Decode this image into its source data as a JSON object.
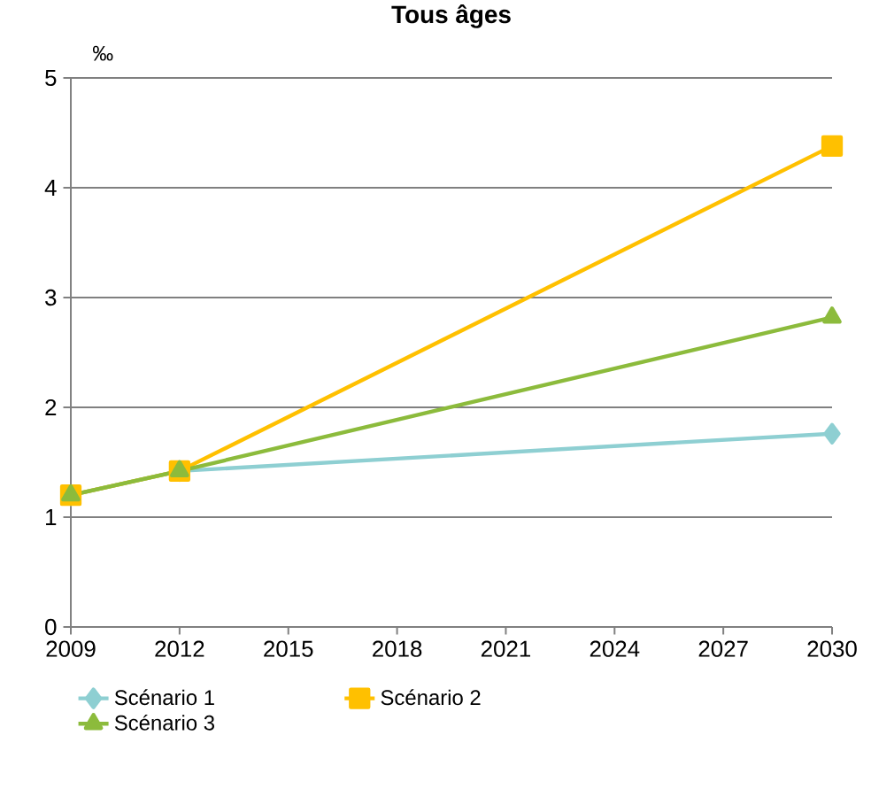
{
  "chart_data": {
    "type": "line",
    "title": "Tous âges",
    "ylabel": "‰",
    "x": [
      2009,
      2012,
      2030
    ],
    "series": [
      {
        "name": "Scénario 1",
        "color": "#8ecfd2",
        "marker": "diamond",
        "values": [
          1.2,
          1.42,
          1.76
        ]
      },
      {
        "name": "Scénario 2",
        "color": "#ffc000",
        "marker": "square",
        "values": [
          1.2,
          1.42,
          4.38
        ]
      },
      {
        "name": "Scénario 3",
        "color": "#8cbb3c",
        "marker": "triangle",
        "values": [
          1.2,
          1.42,
          2.82
        ]
      }
    ],
    "xlim": [
      2009,
      2030
    ],
    "xticks": [
      2009,
      2012,
      2015,
      2018,
      2021,
      2024,
      2027,
      2030
    ],
    "ylim": [
      0,
      5
    ],
    "yticks": [
      0,
      1,
      2,
      3,
      4,
      5
    ],
    "grid": "y",
    "legend": "bottom",
    "line_style": "solid"
  }
}
